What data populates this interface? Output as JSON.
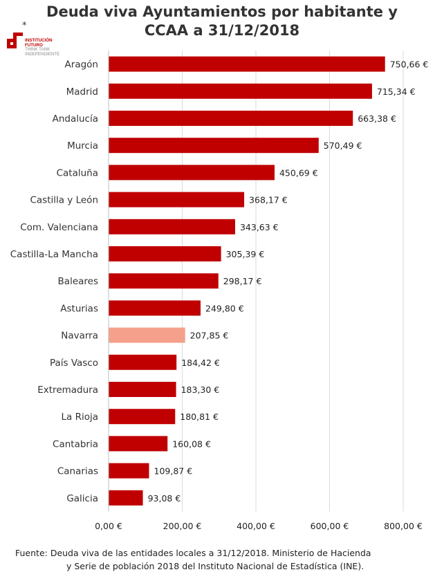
{
  "title_line1": "Deuda viva Ayuntamientos por habitante y",
  "title_line2": "CCAA a 31/12/2018",
  "logo": {
    "mark": "*",
    "line1": "INSTITUCIÓN",
    "line2": "FUTURO",
    "line3": "THINK TANK",
    "line4": "INDEPENDIENTE"
  },
  "colors": {
    "bar": "#c00000",
    "highlight": "#f4a08a",
    "grid": "#d9d9d9"
  },
  "chart_data": {
    "type": "bar",
    "orientation": "horizontal",
    "categories": [
      "Aragón",
      "Madrid",
      "Andalucía",
      "Murcia",
      "Cataluña",
      "Castilla y León",
      "Com. Valenciana",
      "Castilla-La Mancha",
      "Baleares",
      "Asturias",
      "Navarra",
      "País Vasco",
      "Extremadura",
      "La Rioja",
      "Cantabria",
      "Canarias",
      "Galicia"
    ],
    "values": [
      750.66,
      715.34,
      663.38,
      570.49,
      450.69,
      368.17,
      343.63,
      305.39,
      298.17,
      249.8,
      207.85,
      184.42,
      183.3,
      180.81,
      160.08,
      109.87,
      93.08
    ],
    "value_labels": [
      "750,66 €",
      "715,34 €",
      "663,38 €",
      "570,49 €",
      "450,69 €",
      "368,17 €",
      "343,63 €",
      "305,39 €",
      "298,17 €",
      "249,80 €",
      "207,85 €",
      "184,42 €",
      "183,30 €",
      "180,81 €",
      "160,08 €",
      "109,87 €",
      "93,08 €"
    ],
    "highlighted_category": "Navarra",
    "xlim": [
      0,
      800
    ],
    "xticks": [
      0,
      200,
      400,
      600,
      800
    ],
    "xtick_labels": [
      "0,00 €",
      "200,00 €",
      "400,00 €",
      "600,00 €",
      "800,00 €"
    ],
    "grid": true,
    "legend": "none"
  },
  "source_line1": "Fuente: Deuda viva de las entidades locales a 31/12/2018. Ministerio de Hacienda",
  "source_line2": "y Serie de población 2018 del Instituto Nacional de Estadística (INE)."
}
